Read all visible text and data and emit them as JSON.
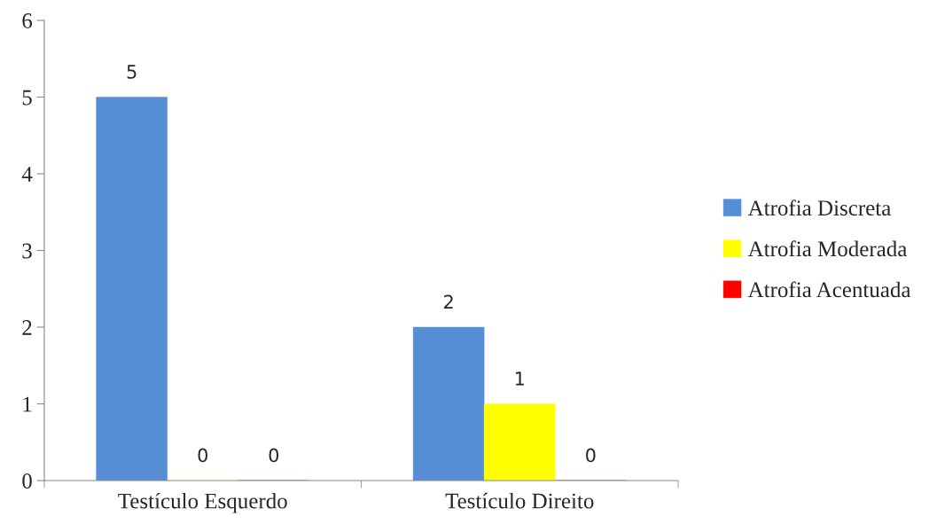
{
  "chart_data": {
    "type": "bar",
    "categories": [
      "Testículo Esquerdo",
      "Testículo Direito"
    ],
    "series": [
      {
        "name": "Atrofia Discreta",
        "color": "#558ed5",
        "values": [
          5,
          2
        ]
      },
      {
        "name": "Atrofia Moderada",
        "color": "#ffff00",
        "values": [
          0,
          1
        ]
      },
      {
        "name": "Atrofia Acentuada",
        "color": "#ff0000",
        "values": [
          0,
          0
        ]
      }
    ],
    "ylim": [
      0,
      6
    ],
    "yticks": [
      0,
      1,
      2,
      3,
      4,
      5,
      6
    ],
    "data_labels": true,
    "legend": "right",
    "grid": false
  }
}
